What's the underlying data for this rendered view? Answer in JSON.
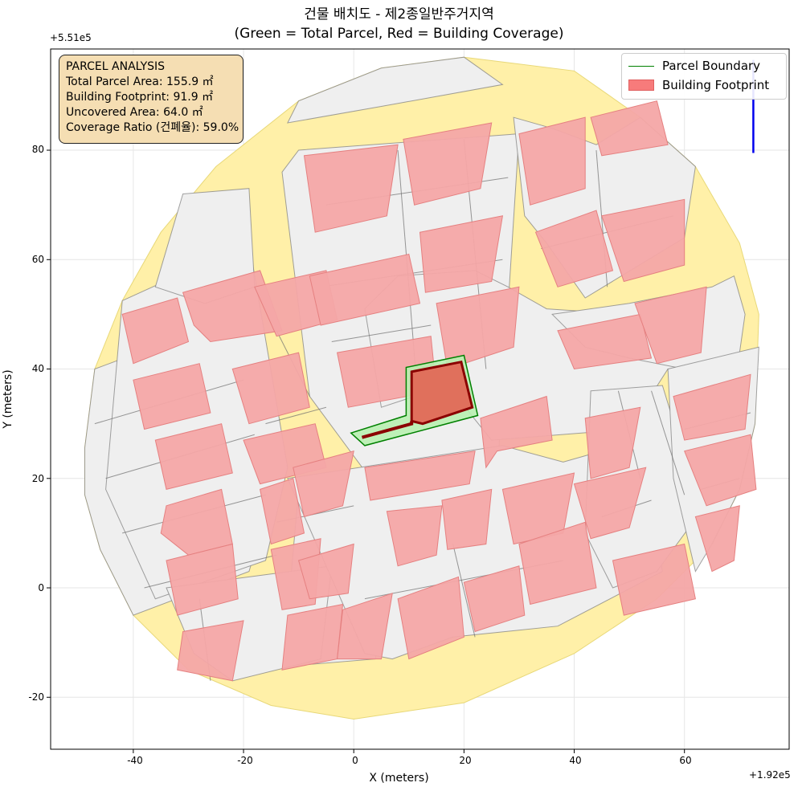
{
  "chart_data": {
    "type": "map",
    "title": "건물 배치도 - 제2종일반주거지역",
    "subtitle": "(Green = Total Parcel, Red = Building Coverage)",
    "xlabel": "X (meters)",
    "ylabel": "Y (meters)",
    "x_offset_label": "+1.92e5",
    "y_offset_label": "+5.51e5",
    "xlim": [
      -55,
      79
    ],
    "ylim": [
      -29.5,
      98.5
    ],
    "xticks": [
      -40,
      -20,
      0,
      20,
      40,
      60
    ],
    "yticks": [
      -20,
      0,
      20,
      40,
      60,
      80
    ],
    "xtick_labels": [
      "-40",
      "-20",
      "0",
      "20",
      "40",
      "60"
    ],
    "ytick_labels": [
      "-20",
      "0",
      "20",
      "40",
      "60",
      "80"
    ],
    "grid": true,
    "legend_position": "top-right",
    "legend": [
      {
        "label": "Parcel Boundary",
        "kind": "line",
        "color": "#008000"
      },
      {
        "label": "Building Footprint",
        "kind": "patch",
        "color": "#f77b7b"
      }
    ],
    "annotation": {
      "lines": [
        "PARCEL ANALYSIS",
        "Total Parcel Area: 155.9 ㎡",
        "Building Footprint: 91.9 ㎡",
        "Uncovered Area: 64.0 ㎡",
        "Coverage Ratio (건폐율): 59.0%"
      ],
      "position": "top-left"
    },
    "highlighted_parcel": {
      "boundary": [
        [
          -0.5,
          28.3
        ],
        [
          9.5,
          31.5
        ],
        [
          9.5,
          40.3
        ],
        [
          20.0,
          42.5
        ],
        [
          22.5,
          31.5
        ],
        [
          2.0,
          26.0
        ]
      ],
      "building": [
        [
          1.5,
          27.5
        ],
        [
          11.0,
          30.0
        ],
        [
          10.5,
          39.5
        ],
        [
          19.5,
          41.3
        ],
        [
          21.5,
          33.0
        ],
        [
          12.5,
          30.0
        ],
        [
          11.5,
          30.0
        ]
      ],
      "parcel_color": "#008000",
      "building_color": "#8b0000"
    },
    "north_arrow": {
      "x": 72.5,
      "y_start": 79.5,
      "y_end": 96.5,
      "color": "#0000ee"
    },
    "area_boundary": [
      [
        -48.8,
        25.6
      ],
      [
        -47,
        40
      ],
      [
        -42,
        52.5
      ],
      [
        -35,
        65
      ],
      [
        -25,
        77
      ],
      [
        -10,
        89
      ],
      [
        5,
        95
      ],
      [
        20,
        97
      ],
      [
        40,
        94.5
      ],
      [
        52,
        86
      ],
      [
        62,
        77
      ],
      [
        70,
        63
      ],
      [
        73.5,
        50
      ],
      [
        72.8,
        30
      ],
      [
        70,
        18
      ],
      [
        65,
        8
      ],
      [
        55,
        -2
      ],
      [
        40,
        -12
      ],
      [
        20,
        -21
      ],
      [
        0,
        -24
      ],
      [
        -15,
        -21.5
      ],
      [
        -30,
        -15
      ],
      [
        -40,
        -5
      ],
      [
        -46,
        7
      ],
      [
        -48.8,
        17
      ]
    ],
    "road_color": "#fff0a8",
    "lot_color": "#efefef",
    "building_fill": "#f4a6a6",
    "buildings": [
      [
        [
          -31,
          54
        ],
        [
          -17,
          58
        ],
        [
          -13,
          47
        ],
        [
          -26,
          45
        ],
        [
          -29,
          48
        ]
      ],
      [
        [
          -42,
          50
        ],
        [
          -32,
          53
        ],
        [
          -30,
          45
        ],
        [
          -40,
          41
        ]
      ],
      [
        [
          -40,
          38
        ],
        [
          -28,
          41
        ],
        [
          -26,
          32
        ],
        [
          -38,
          29
        ]
      ],
      [
        [
          -36,
          27
        ],
        [
          -24,
          30
        ],
        [
          -22,
          21
        ],
        [
          -34,
          18
        ]
      ],
      [
        [
          -34,
          15
        ],
        [
          -24,
          18
        ],
        [
          -22,
          8
        ],
        [
          -30,
          6
        ],
        [
          -35,
          10
        ]
      ],
      [
        [
          -34,
          5
        ],
        [
          -22,
          8
        ],
        [
          -21,
          -2
        ],
        [
          -32,
          -5
        ]
      ],
      [
        [
          -31,
          -8
        ],
        [
          -20,
          -6
        ],
        [
          -22,
          -17
        ],
        [
          -32,
          -15
        ]
      ],
      [
        [
          -18,
          55
        ],
        [
          -5,
          58
        ],
        [
          -3,
          49
        ],
        [
          -14,
          46
        ]
      ],
      [
        [
          -22,
          40
        ],
        [
          -10,
          43
        ],
        [
          -8,
          33
        ],
        [
          -19,
          30
        ]
      ],
      [
        [
          -20,
          27
        ],
        [
          -7,
          30
        ],
        [
          -5,
          22
        ],
        [
          -17,
          19
        ]
      ],
      [
        [
          -17,
          18
        ],
        [
          -11,
          20
        ],
        [
          -9,
          10
        ],
        [
          -15,
          8
        ]
      ],
      [
        [
          -15,
          7
        ],
        [
          -6,
          9
        ],
        [
          -7,
          -3
        ],
        [
          -13,
          -4
        ]
      ],
      [
        [
          -10,
          5
        ],
        [
          0,
          8
        ],
        [
          -1,
          -1
        ],
        [
          -8,
          -2
        ]
      ],
      [
        [
          -11,
          22
        ],
        [
          0,
          25
        ],
        [
          -2,
          15
        ],
        [
          -9,
          13
        ]
      ],
      [
        [
          -12,
          -5
        ],
        [
          -2,
          -3
        ],
        [
          -3,
          -13
        ],
        [
          -13,
          -15
        ]
      ],
      [
        [
          -2,
          -4
        ],
        [
          7,
          -1
        ],
        [
          5,
          -13
        ],
        [
          -3,
          -13
        ]
      ],
      [
        [
          -9,
          79
        ],
        [
          8,
          81
        ],
        [
          6,
          68
        ],
        [
          -7,
          65
        ]
      ],
      [
        [
          9,
          82
        ],
        [
          25,
          85
        ],
        [
          23,
          73
        ],
        [
          11,
          70
        ]
      ],
      [
        [
          -8,
          57
        ],
        [
          10,
          61
        ],
        [
          12,
          52
        ],
        [
          -6,
          48
        ]
      ],
      [
        [
          12,
          65
        ],
        [
          27,
          68
        ],
        [
          25,
          56
        ],
        [
          13,
          54
        ]
      ],
      [
        [
          -3,
          43
        ],
        [
          14,
          46
        ],
        [
          15,
          36
        ],
        [
          -1,
          33
        ]
      ],
      [
        [
          15,
          52
        ],
        [
          30,
          55
        ],
        [
          29,
          44
        ],
        [
          17,
          40
        ]
      ],
      [
        [
          2,
          22
        ],
        [
          22,
          25
        ],
        [
          21,
          19
        ],
        [
          3,
          16
        ]
      ],
      [
        [
          6,
          14
        ],
        [
          16,
          15
        ],
        [
          15,
          6
        ],
        [
          8,
          4
        ]
      ],
      [
        [
          16,
          16
        ],
        [
          25,
          18
        ],
        [
          24,
          8
        ],
        [
          17,
          7
        ]
      ],
      [
        [
          23,
          31
        ],
        [
          35,
          35
        ],
        [
          36,
          27
        ],
        [
          26,
          25
        ],
        [
          24,
          22
        ]
      ],
      [
        [
          27,
          18
        ],
        [
          40,
          21
        ],
        [
          38,
          10
        ],
        [
          29,
          8
        ]
      ],
      [
        [
          30,
          8
        ],
        [
          42,
          12
        ],
        [
          44,
          0
        ],
        [
          32,
          -3
        ]
      ],
      [
        [
          8,
          -2
        ],
        [
          19,
          2
        ],
        [
          20,
          -9
        ],
        [
          10,
          -13
        ]
      ],
      [
        [
          20,
          1
        ],
        [
          30,
          4
        ],
        [
          31,
          -5
        ],
        [
          22,
          -8
        ]
      ],
      [
        [
          30,
          83
        ],
        [
          42,
          86
        ],
        [
          42,
          73
        ],
        [
          32,
          70
        ]
      ],
      [
        [
          33,
          65
        ],
        [
          44,
          69
        ],
        [
          47,
          58
        ],
        [
          37,
          55
        ]
      ],
      [
        [
          45,
          68
        ],
        [
          60,
          71
        ],
        [
          60,
          59
        ],
        [
          49,
          56
        ]
      ],
      [
        [
          43,
          86
        ],
        [
          55,
          89
        ],
        [
          57,
          81
        ],
        [
          45,
          79
        ]
      ],
      [
        [
          37,
          47
        ],
        [
          52,
          50
        ],
        [
          54,
          42
        ],
        [
          40,
          40
        ]
      ],
      [
        [
          51,
          52
        ],
        [
          64,
          55
        ],
        [
          63,
          43
        ],
        [
          55,
          41
        ]
      ],
      [
        [
          42,
          31
        ],
        [
          52,
          33
        ],
        [
          50,
          22
        ],
        [
          43,
          20
        ]
      ],
      [
        [
          40,
          19
        ],
        [
          53,
          22
        ],
        [
          50,
          11
        ],
        [
          43,
          9
        ]
      ],
      [
        [
          47,
          5
        ],
        [
          60,
          8
        ],
        [
          62,
          -2
        ],
        [
          49,
          -5
        ]
      ],
      [
        [
          58,
          35
        ],
        [
          72,
          39
        ],
        [
          71,
          29
        ],
        [
          60,
          27
        ]
      ],
      [
        [
          60,
          25
        ],
        [
          72,
          28
        ],
        [
          73,
          18
        ],
        [
          64,
          15
        ]
      ],
      [
        [
          62,
          13
        ],
        [
          70,
          15
        ],
        [
          69,
          5
        ],
        [
          65,
          3
        ]
      ]
    ]
  }
}
